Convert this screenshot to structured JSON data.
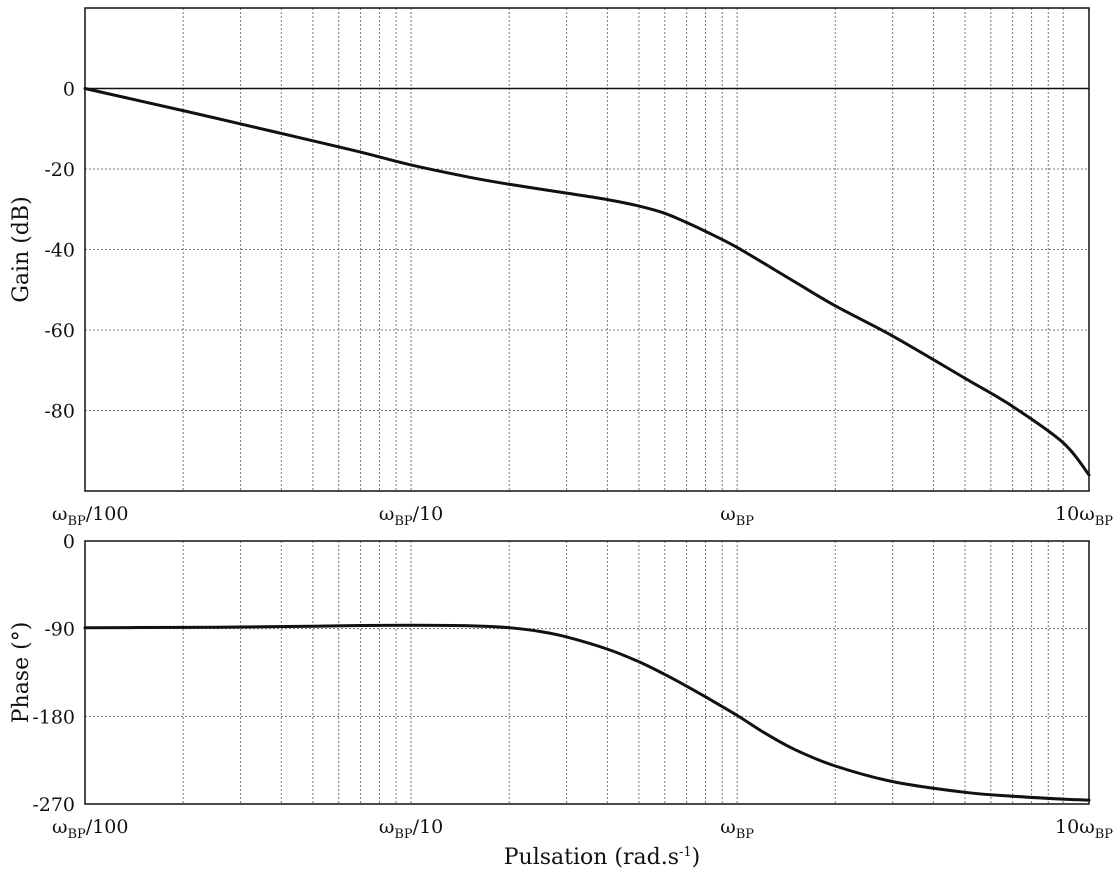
{
  "chart_data": [
    {
      "type": "line",
      "ylabel": "Gain (dB)",
      "xlabel": "",
      "x_scale": "log",
      "x_unit": "ω/ωBP",
      "xlim": [
        0.01,
        12
      ],
      "ylim": [
        -100,
        20
      ],
      "y_ticks": [
        0,
        -20,
        -40,
        -60,
        -80
      ],
      "x_ticks": [
        {
          "value": 0.01,
          "label": "ωBP/100"
        },
        {
          "value": 0.1,
          "label": "ωBP/10"
        },
        {
          "value": 1,
          "label": "ωBP"
        },
        {
          "value": 10,
          "label": "10ωBP"
        }
      ],
      "grid": true,
      "series": [
        {
          "x": [
            0.01,
            0.02,
            0.03,
            0.05,
            0.07,
            0.1,
            0.15,
            0.2,
            0.3,
            0.4,
            0.5,
            0.6,
            0.7,
            0.8,
            1,
            1.5,
            2,
            3,
            5,
            7,
            10,
            12
          ],
          "y": [
            0,
            -5.5,
            -8.8,
            -13,
            -15.8,
            -19,
            -22,
            -23.8,
            -26,
            -27.6,
            -29.2,
            -31,
            -33.3,
            -35.5,
            -39.5,
            -48,
            -54,
            -61.5,
            -72,
            -79,
            -88,
            -96
          ]
        }
      ]
    },
    {
      "type": "line",
      "ylabel": "Phase (°)",
      "xlabel": "Pulsation (rad.s-1)",
      "x_scale": "log",
      "x_unit": "ω/ωBP",
      "xlim": [
        0.01,
        12
      ],
      "ylim": [
        -270,
        0
      ],
      "y_ticks": [
        0,
        -90,
        -180,
        -270
      ],
      "x_ticks": [
        {
          "value": 0.01,
          "label": "ωBP/100"
        },
        {
          "value": 0.1,
          "label": "ωBP/10"
        },
        {
          "value": 1,
          "label": "ωBP"
        },
        {
          "value": 10,
          "label": "10ωBP"
        }
      ],
      "grid": true,
      "series": [
        {
          "x": [
            0.01,
            0.02,
            0.03,
            0.05,
            0.07,
            0.1,
            0.15,
            0.2,
            0.25,
            0.3,
            0.4,
            0.5,
            0.6,
            0.7,
            0.8,
            1,
            1.2,
            1.5,
            2,
            3,
            5,
            7,
            10,
            12
          ],
          "y": [
            -89,
            -88.7,
            -88.3,
            -87.5,
            -86.8,
            -86.5,
            -87,
            -89,
            -93,
            -98.5,
            -111,
            -124,
            -137,
            -149,
            -160,
            -179,
            -196,
            -214,
            -231,
            -247,
            -258,
            -262,
            -265,
            -266
          ]
        }
      ]
    }
  ]
}
